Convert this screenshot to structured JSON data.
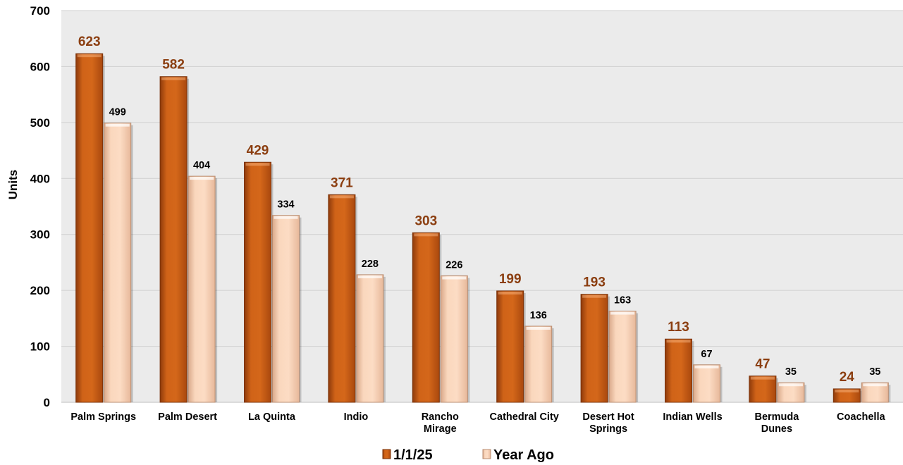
{
  "chart_data": {
    "type": "bar",
    "ylabel": "Units",
    "xlabel": "",
    "ylim": [
      0,
      700
    ],
    "yticks": [
      0,
      100,
      200,
      300,
      400,
      500,
      600,
      700
    ],
    "grid": true,
    "legend_position": "bottom-center",
    "categories": [
      "Palm Springs",
      "Palm Desert",
      "La Quinta",
      "Indio",
      "Rancho Mirage",
      "Cathedral City",
      "Desert Hot Springs",
      "Indian Wells",
      "Bermuda Dunes",
      "Coachella"
    ],
    "category_lines": [
      [
        "Palm Springs"
      ],
      [
        "Palm Desert"
      ],
      [
        "La Quinta"
      ],
      [
        "Indio"
      ],
      [
        "Rancho",
        "Mirage"
      ],
      [
        "Cathedral City"
      ],
      [
        "Desert Hot",
        "Springs"
      ],
      [
        "Indian Wells"
      ],
      [
        "Bermuda",
        "Dunes"
      ],
      [
        "Coachella"
      ]
    ],
    "series": [
      {
        "name": "1/1/25",
        "values": [
          623,
          582,
          429,
          371,
          303,
          199,
          193,
          113,
          47,
          24
        ],
        "color": "#C85A12"
      },
      {
        "name": "Year Ago",
        "values": [
          499,
          404,
          334,
          228,
          226,
          136,
          163,
          67,
          35,
          35
        ],
        "color": "#F8CDAE"
      }
    ]
  }
}
